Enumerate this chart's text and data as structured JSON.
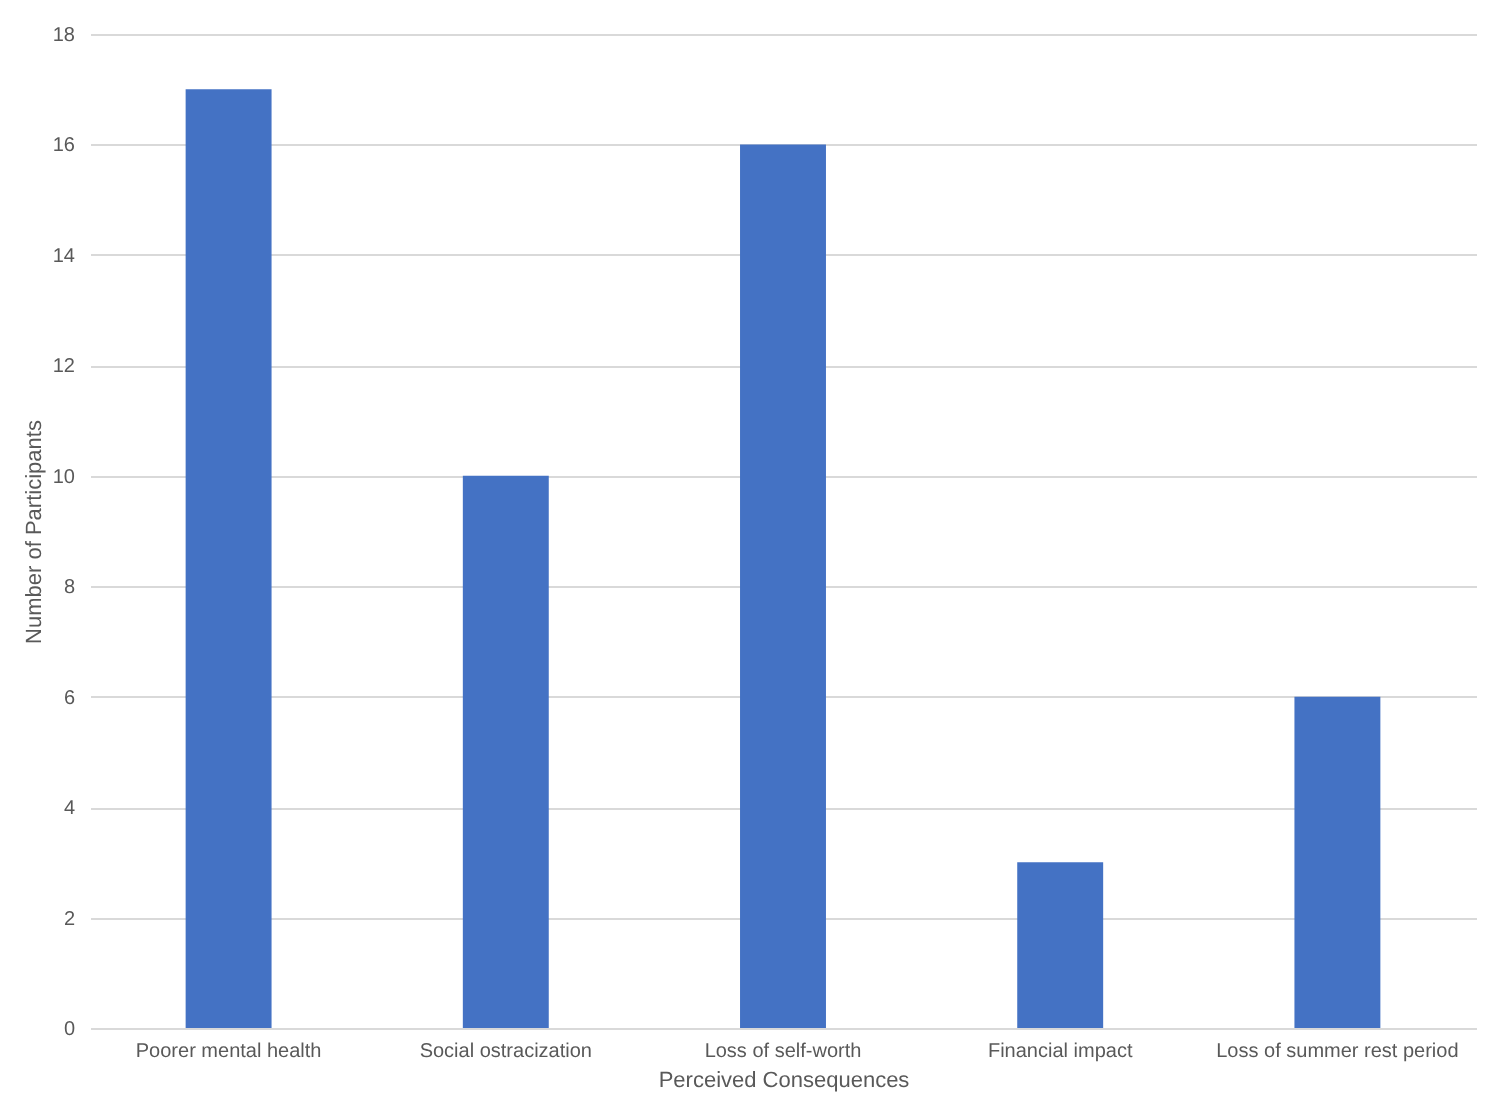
{
  "chart_data": {
    "type": "bar",
    "xlabel": "Perceived Consequences",
    "ylabel": "Number of Participants",
    "categories": [
      "Poorer mental health",
      "Social ostracization",
      "Loss of self-worth",
      "Financial impact",
      "Loss of summer rest period"
    ],
    "values": [
      17,
      10,
      16,
      3,
      6
    ],
    "color": "#4472c4",
    "ylim": [
      0,
      18
    ],
    "yticks": [
      0,
      2,
      4,
      6,
      8,
      10,
      12,
      14,
      16,
      18
    ],
    "grid": "y"
  }
}
